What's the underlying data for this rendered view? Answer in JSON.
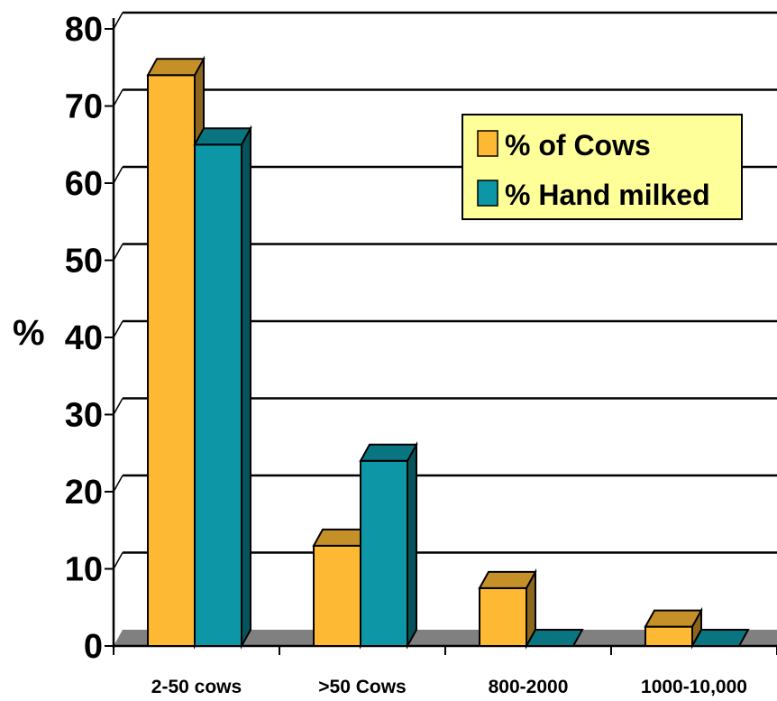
{
  "chart_data": {
    "type": "bar",
    "categories": [
      "2-50 cows",
      ">50 Cows",
      "800-2000",
      "1000-10,000"
    ],
    "series": [
      {
        "name": "% of Cows",
        "values": [
          74,
          13,
          7.5,
          2.5
        ],
        "color": "#FDB933"
      },
      {
        "name": "% Hand milked",
        "values": [
          65,
          24,
          0,
          0
        ],
        "color": "#0C96A6"
      }
    ],
    "ylabel": "%",
    "ylim": [
      0,
      80
    ],
    "yticks": [
      0,
      10,
      20,
      30,
      40,
      50,
      60,
      70,
      80
    ],
    "grid": true,
    "legend_position": "top-right",
    "legend_background": "#FFFF99",
    "floor_color": "#808080",
    "style": "3d"
  }
}
